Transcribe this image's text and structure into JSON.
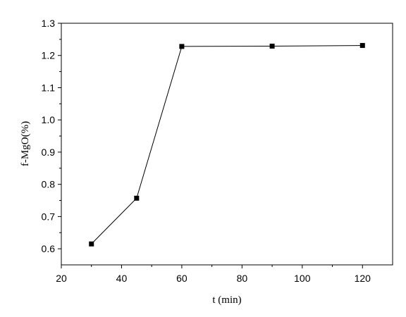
{
  "chart_data": {
    "type": "line",
    "title": "",
    "xlabel": "t (min)",
    "ylabel": "f-MgO(%)",
    "xlim": [
      20,
      130
    ],
    "ylim": [
      0.55,
      1.3
    ],
    "x_ticks": [
      20,
      40,
      60,
      80,
      100,
      120
    ],
    "y_ticks": [
      0.6,
      0.7,
      0.8,
      0.9,
      1.0,
      1.1,
      1.2,
      1.3
    ],
    "x_tick_labels": [
      "20",
      "40",
      "60",
      "80",
      "100",
      "120"
    ],
    "y_tick_labels": [
      "0.6",
      "0.7",
      "0.8",
      "0.9",
      "1.0",
      "1.1",
      "1.2",
      "1.3"
    ],
    "grid": false,
    "series": [
      {
        "x": [
          30,
          45,
          60,
          90,
          120
        ],
        "y": [
          0.615,
          0.757,
          1.228,
          1.229,
          1.231
        ],
        "marker": "square",
        "color": "#000000"
      }
    ]
  }
}
